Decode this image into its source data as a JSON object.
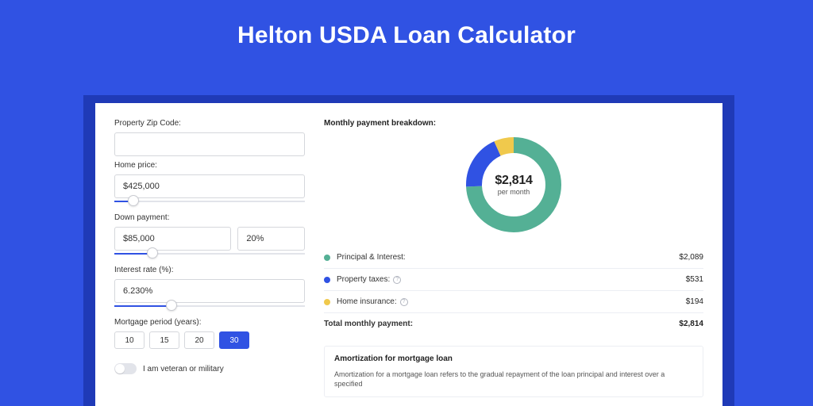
{
  "page": {
    "background_color": "#3052e3",
    "card_shadow_color": "#1f3ab7",
    "card_background": "#ffffff",
    "title": "Helton USDA Loan Calculator",
    "title_color": "#ffffff",
    "title_fontsize": 30
  },
  "form": {
    "zip": {
      "label": "Property Zip Code:",
      "value": ""
    },
    "home_price": {
      "label": "Home price:",
      "value": "$425,000",
      "slider_pct": 10
    },
    "down_payment": {
      "label": "Down payment:",
      "value": "$85,000",
      "pct_value": "20%",
      "slider_pct": 20
    },
    "interest": {
      "label": "Interest rate (%):",
      "value": "6.230%",
      "slider_pct": 30
    },
    "period": {
      "label": "Mortgage period (years):",
      "options": [
        "10",
        "15",
        "20",
        "30"
      ],
      "selected_index": 3
    },
    "veteran": {
      "label": "I am veteran or military",
      "checked": false
    }
  },
  "breakdown": {
    "title": "Monthly payment breakdown:",
    "donut": {
      "type": "donut",
      "amount": "$2,814",
      "sub": "per month",
      "series": [
        {
          "label": "Principal & Interest:",
          "value": 2089,
          "value_label": "$2,089",
          "color": "#54b095",
          "has_info": false
        },
        {
          "label": "Property taxes:",
          "value": 531,
          "value_label": "$531",
          "color": "#3052e3",
          "has_info": true
        },
        {
          "label": "Home insurance:",
          "value": 194,
          "value_label": "$194",
          "color": "#f0c94c",
          "has_info": true
        }
      ],
      "stroke_width": 20,
      "size": 120,
      "background": "#ffffff"
    },
    "total": {
      "label": "Total monthly payment:",
      "value_label": "$2,814"
    }
  },
  "amort": {
    "title": "Amortization for mortgage loan",
    "text": "Amortization for a mortgage loan refers to the gradual repayment of the loan principal and interest over a specified"
  }
}
